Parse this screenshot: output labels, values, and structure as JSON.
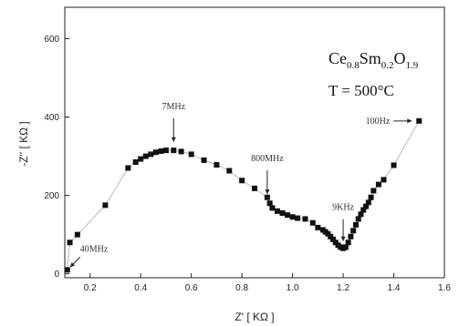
{
  "chart_data": {
    "type": "scatter",
    "xlabel": "Z' [ KΩ ]",
    "ylabel": "-Z'' [ KΩ ]",
    "xlim": [
      0.1,
      1.6
    ],
    "ylim": [
      -10,
      680
    ],
    "x_ticks": [
      "0.2",
      "0.4",
      "0.6",
      "0.8",
      "1.0",
      "1.2",
      "1.4",
      "1.6"
    ],
    "y_ticks": [
      "0",
      "200",
      "400",
      "600"
    ],
    "formula": {
      "parts": [
        {
          "text": "Ce",
          "sub": "0.8"
        },
        {
          "text": "Sm",
          "sub": "0.2"
        },
        {
          "text": "O",
          "sub": "1.9"
        }
      ]
    },
    "temperature_label": "T = 500°C",
    "annotations": [
      {
        "text": "40MHz",
        "x": 0.11,
        "y": 10
      },
      {
        "text": "7MHz",
        "x": 0.53,
        "y": 318
      },
      {
        "text": "800MHz",
        "x": 0.9,
        "y": 185
      },
      {
        "text": "9KHz",
        "x": 1.2,
        "y": 65
      },
      {
        "text": "100Hz",
        "x": 1.5,
        "y": 390
      }
    ],
    "series": [
      {
        "marker": "square",
        "color": "#111111",
        "x": [
          0.11,
          0.12,
          0.15,
          0.26,
          0.35,
          0.38,
          0.4,
          0.42,
          0.44,
          0.46,
          0.48,
          0.5,
          0.53,
          0.56,
          0.6,
          0.65,
          0.7,
          0.75,
          0.8,
          0.85,
          0.9,
          0.91,
          0.92,
          0.94,
          0.96,
          0.98,
          1.0,
          1.02,
          1.05,
          1.08,
          1.1,
          1.12,
          1.13,
          1.14,
          1.15,
          1.16,
          1.17,
          1.18,
          1.19,
          1.2,
          1.21,
          1.22,
          1.23,
          1.24,
          1.25,
          1.26,
          1.27,
          1.28,
          1.29,
          1.3,
          1.31,
          1.32,
          1.34,
          1.36,
          1.4,
          1.5
        ],
        "y": [
          10,
          80,
          100,
          175,
          270,
          285,
          293,
          300,
          305,
          310,
          313,
          315,
          315,
          312,
          305,
          290,
          278,
          263,
          238,
          218,
          195,
          180,
          168,
          160,
          155,
          150,
          145,
          142,
          140,
          130,
          118,
          112,
          107,
          102,
          95,
          88,
          80,
          73,
          68,
          65,
          68,
          80,
          95,
          110,
          125,
          140,
          152,
          163,
          172,
          182,
          195,
          212,
          228,
          240,
          277,
          390
        ]
      }
    ]
  }
}
